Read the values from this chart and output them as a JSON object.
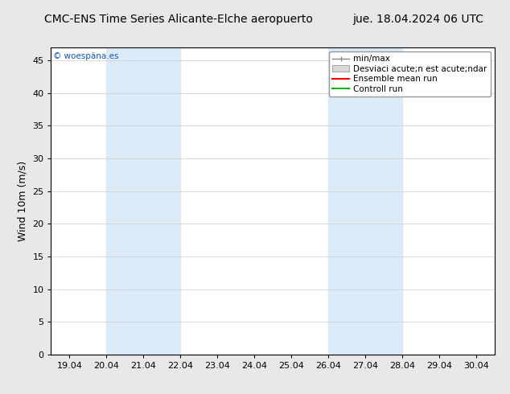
{
  "title_left": "CMC-ENS Time Series Alicante-Elche aeropuerto",
  "title_right": "jue. 18.04.2024 06 UTC",
  "ylabel": "Wind 10m (m/s)",
  "watermark": "© woespäna.es",
  "ylim": [
    0,
    47
  ],
  "yticks": [
    0,
    5,
    10,
    15,
    20,
    25,
    30,
    35,
    40,
    45
  ],
  "x_tick_labels": [
    "19.04",
    "20.04",
    "21.04",
    "22.04",
    "23.04",
    "24.04",
    "25.04",
    "26.04",
    "27.04",
    "28.04",
    "29.04",
    "30.04"
  ],
  "x_tick_positions": [
    0,
    1,
    2,
    3,
    4,
    5,
    6,
    7,
    8,
    9,
    10,
    11
  ],
  "shaded_bands": [
    {
      "x_start": 1.0,
      "x_end": 3.0,
      "color": "#daeaf7"
    },
    {
      "x_start": 7.0,
      "x_end": 9.0,
      "color": "#daeaf7"
    }
  ],
  "legend_labels": [
    "min/max",
    "Desviaci acute;n est acute;ndar",
    "Ensemble mean run",
    "Controll run"
  ],
  "background_color": "#e8e8e8",
  "plot_bg_color": "#ffffff",
  "title_fontsize": 10,
  "tick_fontsize": 8,
  "ylabel_fontsize": 9
}
